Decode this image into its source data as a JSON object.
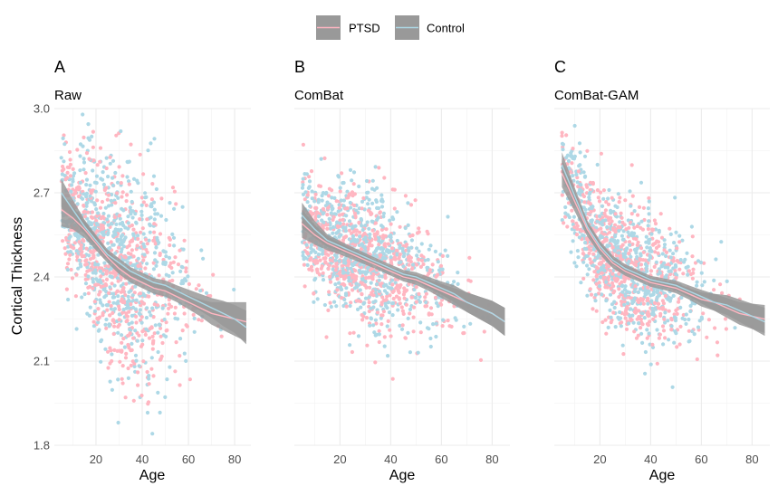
{
  "legend": {
    "position": "top",
    "items": [
      {
        "label": "PTSD",
        "color": "#FFB6C1"
      },
      {
        "label": "Control",
        "color": "#ADD8E6"
      }
    ],
    "key_fill": "#999999"
  },
  "chart_data": [
    {
      "type": "scatter",
      "tag": "A",
      "title": "Raw",
      "xlabel": "Age",
      "ylabel": "Cortical Thickness",
      "xlim": [
        2,
        87
      ],
      "ylim": [
        1.8,
        3.0
      ],
      "xticks": [
        20,
        40,
        60,
        80
      ],
      "yticks": [
        1.8,
        2.1,
        2.4,
        2.7,
        3.0
      ],
      "grid": true,
      "cloud": {
        "points_per_group": 650,
        "age_range": [
          5,
          85
        ],
        "density_peak_age": 35,
        "spread_low_age": 0.11,
        "spread_mid_age": 0.21,
        "spread_high_age": 0.07
      },
      "series": [
        {
          "name": "PTSD",
          "color": "#FFB6C1",
          "x": [
            5,
            10,
            15,
            20,
            25,
            30,
            35,
            40,
            45,
            50,
            55,
            60,
            65,
            70,
            75,
            80,
            85
          ],
          "y": [
            2.64,
            2.61,
            2.57,
            2.52,
            2.47,
            2.43,
            2.4,
            2.38,
            2.36,
            2.35,
            2.33,
            2.31,
            2.29,
            2.27,
            2.26,
            2.25,
            2.24
          ],
          "ci": [
            0.06,
            0.04,
            0.03,
            0.025,
            0.02,
            0.02,
            0.02,
            0.02,
            0.02,
            0.02,
            0.02,
            0.025,
            0.03,
            0.04,
            0.05,
            0.06,
            0.07
          ]
        },
        {
          "name": "Control",
          "color": "#ADD8E6",
          "x": [
            5,
            10,
            15,
            20,
            25,
            30,
            35,
            40,
            45,
            50,
            55,
            60,
            65,
            70,
            75,
            80,
            85
          ],
          "y": [
            2.7,
            2.64,
            2.58,
            2.53,
            2.48,
            2.45,
            2.42,
            2.4,
            2.38,
            2.37,
            2.35,
            2.33,
            2.31,
            2.29,
            2.27,
            2.25,
            2.22
          ],
          "ci": [
            0.05,
            0.035,
            0.025,
            0.02,
            0.018,
            0.016,
            0.015,
            0.015,
            0.016,
            0.018,
            0.02,
            0.025,
            0.03,
            0.035,
            0.045,
            0.05,
            0.06
          ]
        }
      ]
    },
    {
      "type": "scatter",
      "tag": "B",
      "title": "ComBat",
      "xlabel": "Age",
      "ylabel": "",
      "xlim": [
        2,
        87
      ],
      "ylim": [
        1.8,
        3.0
      ],
      "xticks": [
        20,
        40,
        60,
        80
      ],
      "yticks": [
        1.8,
        2.1,
        2.4,
        2.7,
        3.0
      ],
      "grid": true,
      "cloud": {
        "points_per_group": 650,
        "age_range": [
          5,
          82
        ],
        "density_peak_age": 35,
        "spread_low_age": 0.1,
        "spread_mid_age": 0.13,
        "spread_high_age": 0.08
      },
      "series": [
        {
          "name": "PTSD",
          "color": "#FFB6C1",
          "x": [
            5,
            10,
            15,
            20,
            25,
            30,
            35,
            40,
            45,
            50,
            55,
            60,
            65,
            70,
            75,
            80,
            85
          ],
          "y": [
            2.59,
            2.55,
            2.52,
            2.5,
            2.48,
            2.46,
            2.44,
            2.42,
            2.4,
            2.39,
            2.37,
            2.35,
            2.33,
            2.31,
            2.29,
            2.27,
            2.24
          ],
          "ci": [
            0.05,
            0.035,
            0.025,
            0.02,
            0.018,
            0.016,
            0.015,
            0.015,
            0.016,
            0.018,
            0.02,
            0.025,
            0.03,
            0.035,
            0.04,
            0.045,
            0.05
          ]
        },
        {
          "name": "Control",
          "color": "#ADD8E6",
          "x": [
            5,
            10,
            15,
            20,
            25,
            30,
            35,
            40,
            45,
            50,
            55,
            60,
            65,
            70,
            75,
            80,
            85
          ],
          "y": [
            2.62,
            2.57,
            2.53,
            2.51,
            2.49,
            2.47,
            2.45,
            2.43,
            2.41,
            2.4,
            2.38,
            2.36,
            2.34,
            2.31,
            2.29,
            2.27,
            2.24
          ],
          "ci": [
            0.045,
            0.03,
            0.022,
            0.018,
            0.016,
            0.015,
            0.014,
            0.014,
            0.015,
            0.017,
            0.02,
            0.024,
            0.03,
            0.035,
            0.04,
            0.045,
            0.05
          ]
        }
      ]
    },
    {
      "type": "scatter",
      "tag": "C",
      "title": "ComBat-GAM",
      "xlabel": "Age",
      "ylabel": "",
      "xlim": [
        2,
        87
      ],
      "ylim": [
        1.8,
        3.0
      ],
      "xticks": [
        20,
        40,
        60,
        80
      ],
      "yticks": [
        1.8,
        2.1,
        2.4,
        2.7,
        3.0
      ],
      "grid": true,
      "cloud": {
        "points_per_group": 650,
        "age_range": [
          5,
          82
        ],
        "density_peak_age": 35,
        "spread_low_age": 0.09,
        "spread_mid_age": 0.12,
        "spread_high_age": 0.08
      },
      "series": [
        {
          "name": "PTSD",
          "color": "#FFB6C1",
          "x": [
            5,
            10,
            15,
            20,
            25,
            30,
            35,
            40,
            45,
            50,
            55,
            60,
            65,
            70,
            75,
            80,
            85
          ],
          "y": [
            2.77,
            2.67,
            2.57,
            2.5,
            2.45,
            2.42,
            2.4,
            2.38,
            2.37,
            2.36,
            2.34,
            2.32,
            2.31,
            2.29,
            2.27,
            2.26,
            2.25
          ],
          "ci": [
            0.05,
            0.035,
            0.025,
            0.02,
            0.018,
            0.016,
            0.015,
            0.015,
            0.016,
            0.018,
            0.02,
            0.025,
            0.03,
            0.035,
            0.04,
            0.045,
            0.05
          ]
        },
        {
          "name": "Control",
          "color": "#ADD8E6",
          "x": [
            5,
            10,
            15,
            20,
            25,
            30,
            35,
            40,
            45,
            50,
            55,
            60,
            65,
            70,
            75,
            80,
            85
          ],
          "y": [
            2.8,
            2.69,
            2.58,
            2.51,
            2.46,
            2.43,
            2.41,
            2.39,
            2.38,
            2.37,
            2.35,
            2.33,
            2.31,
            2.3,
            2.28,
            2.26,
            2.24
          ],
          "ci": [
            0.045,
            0.03,
            0.022,
            0.018,
            0.016,
            0.015,
            0.014,
            0.014,
            0.015,
            0.017,
            0.02,
            0.024,
            0.03,
            0.035,
            0.04,
            0.045,
            0.05
          ]
        }
      ]
    }
  ]
}
